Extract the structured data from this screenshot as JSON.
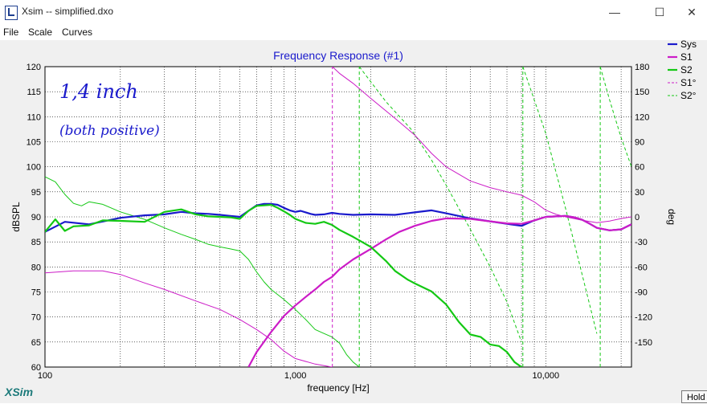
{
  "window": {
    "title": "Xsim -- simplified.dxo",
    "minimize": "—",
    "maximize": "☐",
    "close": "✕"
  },
  "menu": [
    "File",
    "Scale",
    "Curves"
  ],
  "footer": {
    "brand": "XSim",
    "hold_label": "Hold"
  },
  "handwritten_notes": [
    "1,4 inch",
    "(both positive)"
  ],
  "chart_data": {
    "type": "line",
    "title": "Frequency Response (#1)",
    "xlabel": "frequency [Hz]",
    "ylabel": "dBSPL",
    "y2label": "deg",
    "xscale": "log",
    "xlim": [
      100,
      22000
    ],
    "ylim": [
      60,
      120
    ],
    "y2lim": [
      -180,
      180
    ],
    "grid": true,
    "legend_position": "right",
    "x_ticks": [
      100,
      1000,
      10000
    ],
    "x_tick_labels": [
      "100",
      "1,000",
      "10,000"
    ],
    "y_ticks": [
      60,
      65,
      70,
      75,
      80,
      85,
      90,
      95,
      100,
      105,
      110,
      115,
      120
    ],
    "y2_ticks": [
      -150,
      -120,
      -90,
      -60,
      -30,
      0,
      30,
      60,
      90,
      120,
      150,
      180
    ],
    "colors": {
      "Sys": "#1a1acc",
      "S1": "#cc1cc7",
      "S2": "#14c814"
    },
    "series": [
      {
        "name": "Sys",
        "axis": "left",
        "style": "solid",
        "width": 2.2,
        "x": [
          100,
          120,
          150,
          200,
          250,
          300,
          350,
          400,
          450,
          500,
          550,
          600,
          650,
          700,
          750,
          800,
          850,
          900,
          950,
          1000,
          1050,
          1100,
          1150,
          1200,
          1300,
          1400,
          1500,
          1700,
          2000,
          2500,
          3000,
          3500,
          4000,
          5000,
          6000,
          7000,
          8000,
          9000,
          10000,
          11000,
          12000,
          13000,
          14000,
          15000,
          16000,
          18000,
          20000,
          22000
        ],
        "y": [
          87,
          89,
          88.5,
          89.8,
          90.3,
          90.5,
          91,
          90.7,
          90.6,
          90.4,
          90.2,
          90,
          91.2,
          92.3,
          92.6,
          92.6,
          92.4,
          91.8,
          91.3,
          91,
          91.2,
          90.9,
          90.6,
          90.4,
          90.5,
          90.8,
          90.6,
          90.4,
          90.5,
          90.4,
          90.9,
          91.3,
          90.7,
          89.7,
          89.1,
          88.6,
          88.2,
          89.3,
          90,
          90.1,
          90.2,
          89.9,
          89.4,
          88.6,
          87.8,
          87.3,
          87.5,
          88.5
        ]
      },
      {
        "name": "S1",
        "axis": "left",
        "style": "solid",
        "width": 2.2,
        "x": [
          650,
          700,
          800,
          900,
          1000,
          1100,
          1200,
          1300,
          1400,
          1500,
          1700,
          2000,
          2300,
          2600,
          3000,
          3500,
          4000,
          5000,
          6000,
          7000,
          8000,
          9000,
          10000,
          11000,
          12000,
          13000,
          14000,
          15000,
          16000,
          18000,
          20000,
          22000
        ],
        "y": [
          60,
          63,
          67,
          70.2,
          72.3,
          74,
          75.5,
          77,
          78,
          79.5,
          81.5,
          83.6,
          85.5,
          87,
          88.2,
          89.2,
          89.7,
          89.6,
          89.1,
          88.7,
          88.6,
          89.3,
          90,
          90.1,
          90.2,
          89.9,
          89.4,
          88.6,
          87.8,
          87.3,
          87.5,
          88.5
        ]
      },
      {
        "name": "S2",
        "axis": "left",
        "style": "solid",
        "width": 2.2,
        "x": [
          100,
          110,
          120,
          130,
          150,
          170,
          200,
          250,
          300,
          350,
          400,
          450,
          500,
          550,
          600,
          650,
          700,
          750,
          800,
          850,
          900,
          950,
          1000,
          1100,
          1200,
          1300,
          1400,
          1500,
          1700,
          2000,
          2300,
          2500,
          2800,
          3000,
          3500,
          4000,
          4500,
          5000,
          5500,
          6000,
          6500,
          7000,
          7500,
          8000
        ],
        "y": [
          87,
          89.5,
          87.2,
          88.1,
          88.3,
          89.3,
          89.2,
          89,
          91,
          91.5,
          90.5,
          90.1,
          90,
          89.9,
          89.6,
          91.2,
          92.2,
          92.3,
          92.4,
          91.8,
          91.1,
          90.4,
          89.6,
          88.8,
          88.6,
          89,
          88.4,
          87.4,
          86,
          84,
          81.2,
          79.2,
          77.5,
          76.7,
          75.1,
          72.5,
          69,
          66.5,
          66,
          64.5,
          64.2,
          63,
          61,
          60
        ]
      },
      {
        "name": "S1°",
        "axis": "right",
        "style": "dashed",
        "width": 1,
        "x": [
          1405,
          1405
        ],
        "y": [
          -180,
          180
        ]
      },
      {
        "name": "S2°",
        "axis": "right",
        "style": "dashed",
        "width": 1,
        "segments": [
          {
            "x": [
              1800,
              1800
            ],
            "y": [
              -180,
              180
            ]
          },
          {
            "x": [
              1800,
              2300,
              2900,
              3500,
              4000,
              5000,
              6000,
              7000,
              8000
            ],
            "y": [
              180,
              138,
              105,
              68,
              38,
              -15,
              -60,
              -102,
              -150
            ]
          },
          {
            "x": [
              8100,
              8100
            ],
            "y": [
              -180,
              180
            ]
          },
          {
            "x": [
              8100,
              10000,
              12000,
              14000,
              16000
            ],
            "y": [
              180,
              100,
              10,
              -70,
              -140
            ]
          },
          {
            "x": [
              16500,
              16500
            ],
            "y": [
              -180,
              180
            ]
          },
          {
            "x": [
              16500,
              18000,
              20000,
              22000
            ],
            "y": [
              180,
              140,
              95,
              60
            ]
          }
        ]
      },
      {
        "name": "S1 (thin)",
        "axis": "left",
        "style": "solid",
        "width": 1,
        "legend": false,
        "x": [
          100,
          130,
          170,
          200,
          250,
          300,
          400,
          500,
          600,
          700,
          800,
          900,
          1000,
          1200,
          1400
        ],
        "y": [
          78.8,
          79.2,
          79.2,
          78.5,
          76.8,
          75.5,
          73.2,
          71.5,
          69.5,
          67.5,
          65.5,
          63.2,
          61.7,
          60.6,
          60
        ]
      },
      {
        "name": "S2 (thin)",
        "axis": "left",
        "style": "solid",
        "width": 1,
        "legend": false,
        "x": [
          100,
          110,
          120,
          130,
          140,
          150,
          170,
          200,
          250,
          300,
          350,
          400,
          450,
          500,
          550,
          600,
          650,
          700,
          750,
          800,
          900,
          1000,
          1100,
          1200,
          1300,
          1400,
          1500,
          1600,
          1700,
          1800
        ],
        "y": [
          98,
          97,
          94.5,
          92.7,
          92.2,
          93,
          92.5,
          91,
          89.5,
          87.8,
          86.5,
          85.5,
          84.5,
          84,
          83.6,
          83.2,
          81.5,
          79,
          77,
          75.5,
          73.5,
          71.5,
          69.5,
          67.5,
          66.7,
          66,
          64.8,
          62.5,
          61,
          60
        ]
      },
      {
        "name": "S1° (thin)",
        "axis": "right",
        "style": "solid",
        "width": 1,
        "legend": false,
        "x": [
          1405,
          1500,
          1700,
          2000,
          2500,
          3000,
          3500,
          4000,
          5000,
          6000,
          7000,
          8000,
          9000,
          10000,
          11000,
          12000,
          14000,
          16000,
          18000,
          20000,
          22000
        ],
        "y": [
          180,
          172,
          160,
          142,
          118,
          98,
          76,
          60,
          43,
          35,
          30,
          26,
          18,
          8,
          3,
          0,
          -4,
          -7,
          -5,
          -2,
          0
        ]
      }
    ]
  }
}
